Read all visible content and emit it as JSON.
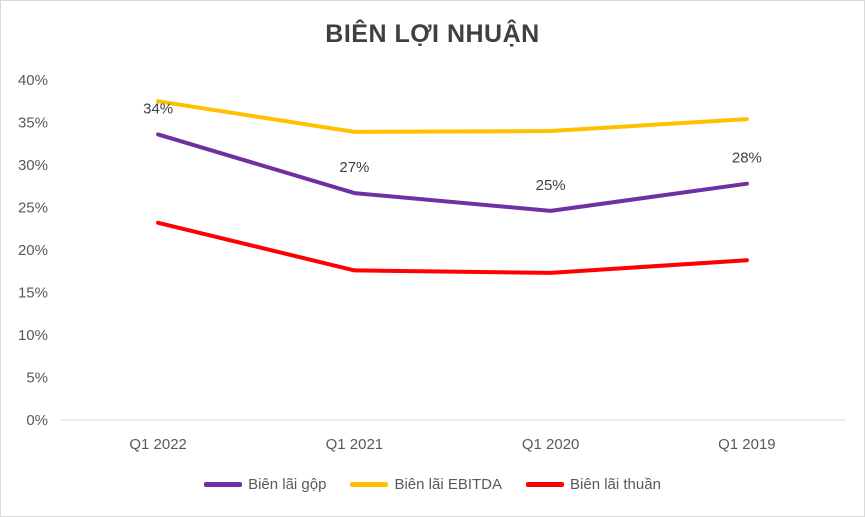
{
  "chart_data": {
    "type": "line",
    "title": "BIÊN LỢI NHUẬN",
    "categories": [
      "Q1 2022",
      "Q1 2021",
      "Q1 2020",
      "Q1 2019"
    ],
    "ylim": [
      0,
      40
    ],
    "y_ticks": [
      "0%",
      "5%",
      "10%",
      "15%",
      "20%",
      "25%",
      "30%",
      "35%",
      "40%"
    ],
    "grid": false,
    "legend_position": "bottom",
    "series": [
      {
        "name": "Biên lãi gộp",
        "color": "#7030a0",
        "values": [
          33.6,
          26.7,
          24.6,
          27.8
        ],
        "data_labels": [
          "34%",
          "27%",
          "25%",
          "28%"
        ]
      },
      {
        "name": "Biên lãi EBITDA",
        "color": "#ffc000",
        "values": [
          37.5,
          33.9,
          34.0,
          35.4
        ],
        "data_labels": []
      },
      {
        "name": "Biên lãi thuần",
        "color": "#ff0000",
        "values": [
          23.2,
          17.6,
          17.3,
          18.8
        ],
        "data_labels": []
      }
    ]
  }
}
